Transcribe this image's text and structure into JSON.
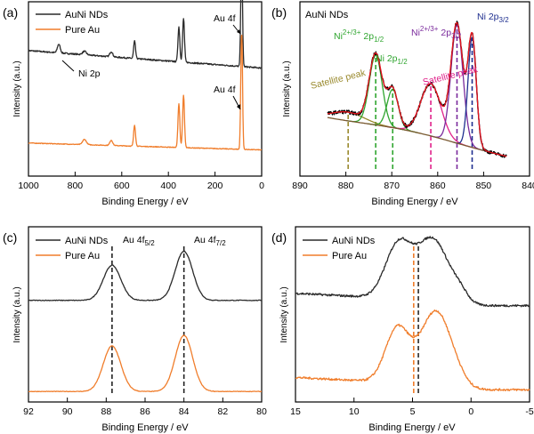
{
  "colors": {
    "black": "#2a2a2a",
    "orange": "#f07d2b",
    "red": "#e8141d",
    "green": "#2fa52f",
    "magenta": "#e0218a",
    "purple": "#7a2a9c",
    "navy": "#1f2f8f",
    "olive": "#9a8a2e",
    "envelope": "#7a5a32"
  },
  "chart_data": [
    {
      "panel": "(a)",
      "type": "line",
      "xlabel": "Binding Energy / eV",
      "ylabel": "Intensity (a.u.)",
      "xlim": [
        1000,
        0
      ],
      "xticks": [
        1000,
        800,
        600,
        400,
        200,
        0
      ],
      "x_reversed": true,
      "legend": [
        "AuNi NDs",
        "Pure Au"
      ],
      "legend_placement": "top-left",
      "annotations": [
        "Au 4f",
        "Ni 2p",
        "Au 4f"
      ],
      "series": [
        {
          "name": "AuNi NDs",
          "color": "black",
          "baseline": 0.62,
          "peaks": [
            [
              870,
              0.05,
              6
            ],
            [
              760,
              0.02,
              8
            ],
            [
              645,
              0.03,
              6
            ],
            [
              545,
              0.1,
              4
            ],
            [
              355,
              0.2,
              4
            ],
            [
              335,
              0.25,
              4
            ],
            [
              88,
              0.35,
              3
            ],
            [
              84,
              0.4,
              3
            ]
          ]
        },
        {
          "name": "Pure Au",
          "color": "orange",
          "baseline": 0.15,
          "peaks": [
            [
              760,
              0.03,
              8
            ],
            [
              645,
              0.03,
              6
            ],
            [
              545,
              0.12,
              4
            ],
            [
              355,
              0.25,
              4
            ],
            [
              335,
              0.3,
              4
            ],
            [
              88,
              0.38,
              3
            ],
            [
              84,
              0.45,
              3
            ]
          ]
        }
      ]
    },
    {
      "panel": "(b)",
      "type": "line",
      "xlabel": "Binding Energy / eV",
      "ylabel": "Intensity (a.u.)",
      "xlim": [
        890,
        840
      ],
      "xticks": [
        890,
        880,
        870,
        860,
        850,
        840
      ],
      "x_reversed": true,
      "title_label": "AuNi NDs",
      "labels": [
        "Ni",
        "2+/3+",
        "2p",
        "1/2",
        "Ni 2p",
        "1/2",
        "Satellite peak",
        "Ni",
        "2+/3+",
        "2p",
        "3/2",
        "Ni 2p",
        "3/2",
        "Satellite peak"
      ],
      "components": [
        {
          "center": 879.5,
          "color": "olive",
          "kind": "satellite"
        },
        {
          "center": 873.5,
          "color": "green",
          "kind": "Ni2+/3+ 2p1/2"
        },
        {
          "center": 869.8,
          "color": "green",
          "kind": "Ni 2p1/2"
        },
        {
          "center": 861.5,
          "color": "magenta",
          "kind": "satellite"
        },
        {
          "center": 855.8,
          "color": "purple",
          "kind": "Ni2+/3+ 2p3/2"
        },
        {
          "center": 852.5,
          "color": "navy",
          "kind": "Ni 2p3/2"
        }
      ],
      "fit_peaks": [
        [
          879.5,
          0.05,
          3.5
        ],
        [
          873.5,
          0.4,
          1.4
        ],
        [
          869.8,
          0.22,
          1.2
        ],
        [
          861.5,
          0.3,
          2.2
        ],
        [
          855.8,
          0.68,
          1.3
        ],
        [
          852.5,
          0.63,
          0.9
        ]
      ]
    },
    {
      "panel": "(c)",
      "type": "line",
      "xlabel": "Binding Energy / eV",
      "ylabel": "Intensity (a.u.)",
      "xlim": [
        92,
        80
      ],
      "xticks": [
        92,
        90,
        88,
        86,
        84,
        82,
        80
      ],
      "x_reversed": true,
      "legend": [
        "AuNi NDs",
        "Pure Au"
      ],
      "legend_placement": "top-left",
      "annotations": [
        "Au 4f",
        "5/2",
        "Au 4f",
        "7/2"
      ],
      "reference_lines": [
        87.7,
        84.0
      ],
      "series": [
        {
          "name": "AuNi NDs",
          "color": "black",
          "baseline": 0.58,
          "peaks": [
            [
              87.7,
              0.2,
              0.45
            ],
            [
              84.0,
              0.28,
              0.45
            ]
          ]
        },
        {
          "name": "Pure Au",
          "color": "orange",
          "baseline": 0.06,
          "peaks": [
            [
              87.7,
              0.26,
              0.45
            ],
            [
              84.0,
              0.32,
              0.45
            ]
          ]
        }
      ]
    },
    {
      "panel": "(d)",
      "type": "line",
      "xlabel": "Binding Energy / eV",
      "ylabel": "Intensity (a.u.)",
      "xlim": [
        15,
        -5
      ],
      "xticks": [
        15,
        10,
        5,
        0,
        -5
      ],
      "x_reversed": true,
      "legend": [
        "AuNi NDs",
        "Pure Au"
      ],
      "legend_placement": "top-left",
      "reference_lines": [
        4.9,
        4.5
      ],
      "series": [
        {
          "name": "AuNi NDs",
          "color": "black",
          "baseline": 0.55,
          "peaks": [
            [
              6.2,
              0.3,
              1.1
            ],
            [
              3.3,
              0.33,
              1.3
            ],
            [
              1.0,
              0.03,
              0.6
            ]
          ]
        },
        {
          "name": "Pure Au",
          "color": "orange",
          "baseline": 0.07,
          "peaks": [
            [
              6.3,
              0.3,
              1.0
            ],
            [
              3.0,
              0.4,
              1.3
            ]
          ]
        }
      ]
    }
  ]
}
